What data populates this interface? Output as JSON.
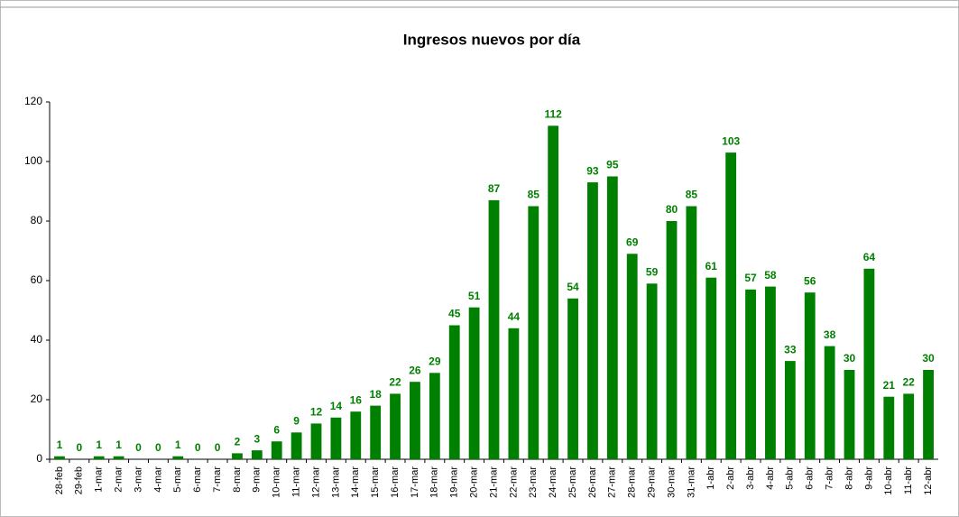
{
  "chart_data": {
    "type": "bar",
    "title": "Ingresos nuevos por día",
    "categories": [
      "28-feb",
      "29-feb",
      "1-mar",
      "2-mar",
      "3-mar",
      "4-mar",
      "5-mar",
      "6-mar",
      "7-mar",
      "8-mar",
      "9-mar",
      "10-mar",
      "11-mar",
      "12-mar",
      "13-mar",
      "14-mar",
      "15-mar",
      "16-mar",
      "17-mar",
      "18-mar",
      "19-mar",
      "20-mar",
      "21-mar",
      "22-mar",
      "23-mar",
      "24-mar",
      "25-mar",
      "26-mar",
      "27-mar",
      "28-mar",
      "29-mar",
      "30-mar",
      "31-mar",
      "1-abr",
      "2-abr",
      "3-abr",
      "4-abr",
      "5-abr",
      "6-abr",
      "7-abr",
      "8-abr",
      "9-abr",
      "10-abr",
      "11-abr",
      "12-abr"
    ],
    "values": [
      1,
      0,
      1,
      1,
      0,
      0,
      1,
      0,
      0,
      2,
      3,
      6,
      9,
      12,
      14,
      16,
      18,
      22,
      26,
      29,
      45,
      51,
      87,
      44,
      85,
      112,
      54,
      93,
      95,
      69,
      59,
      80,
      85,
      61,
      103,
      57,
      58,
      33,
      56,
      38,
      30,
      64,
      21,
      22,
      30
    ],
    "color": "#008000",
    "ylim": [
      0,
      120
    ],
    "yticks": [
      0,
      20,
      40,
      60,
      80,
      100,
      120
    ],
    "grid": false
  }
}
